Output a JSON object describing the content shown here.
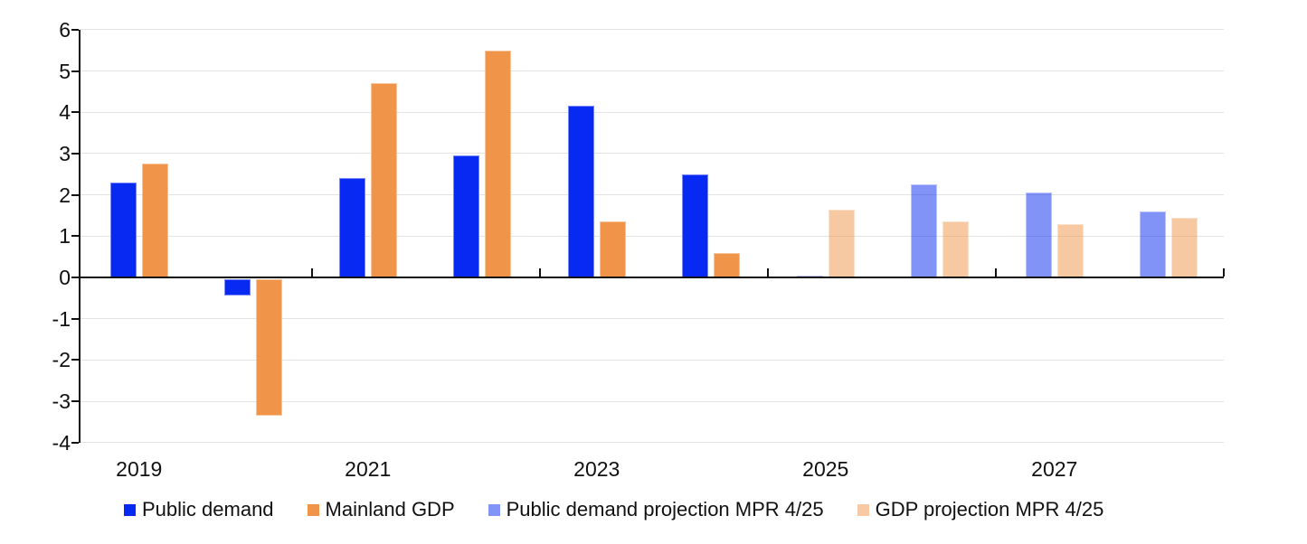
{
  "chart_data": {
    "type": "bar",
    "title": "",
    "xlabel": "",
    "ylabel": "",
    "ylim": [
      -4,
      6
    ],
    "grid": true,
    "legend_position": "bottom",
    "ytick_values": [
      6,
      5,
      4,
      3,
      2,
      1,
      0,
      -1,
      -2,
      -3,
      -4
    ],
    "ytick_labels": [
      "6",
      "5",
      "4",
      "3",
      "2",
      "1",
      "0",
      "-1",
      "-2",
      "-3",
      "-4"
    ],
    "categories": [
      "2019",
      "2020",
      "2021",
      "2022",
      "2023",
      "2024",
      "2025",
      "2026",
      "2027",
      "2028"
    ],
    "visible_xtick_labels": [
      "2019",
      "2021",
      "2023",
      "2025",
      "2027"
    ],
    "visible_xtick_category_indexes": [
      0,
      2,
      4,
      6,
      8
    ],
    "series": [
      {
        "name": "Public demand",
        "color": "#0829F2",
        "display_color": "#0829F2",
        "opacity": 1,
        "values": [
          2.3,
          -0.4,
          2.4,
          2.95,
          4.15,
          2.5,
          null,
          null,
          null,
          null
        ]
      },
      {
        "name": "Mainland GDP",
        "color": "#EF9449",
        "display_color": "#EF9449",
        "opacity": 1,
        "values": [
          2.75,
          -3.3,
          4.7,
          5.5,
          1.35,
          0.6,
          null,
          null,
          null,
          null
        ]
      },
      {
        "name": "Public demand projection MPR 4/25",
        "color": "#0829F2",
        "display_color": "#8190F7",
        "opacity": 0.5,
        "values": [
          null,
          null,
          null,
          null,
          null,
          null,
          0.05,
          2.25,
          2.05,
          1.6
        ]
      },
      {
        "name": "GDP projection MPR 4/25",
        "color": "#EF9449",
        "display_color": "#F6CBA3",
        "opacity": 0.5,
        "values": [
          null,
          null,
          null,
          null,
          null,
          null,
          1.65,
          1.35,
          1.3,
          1.45
        ]
      }
    ]
  }
}
